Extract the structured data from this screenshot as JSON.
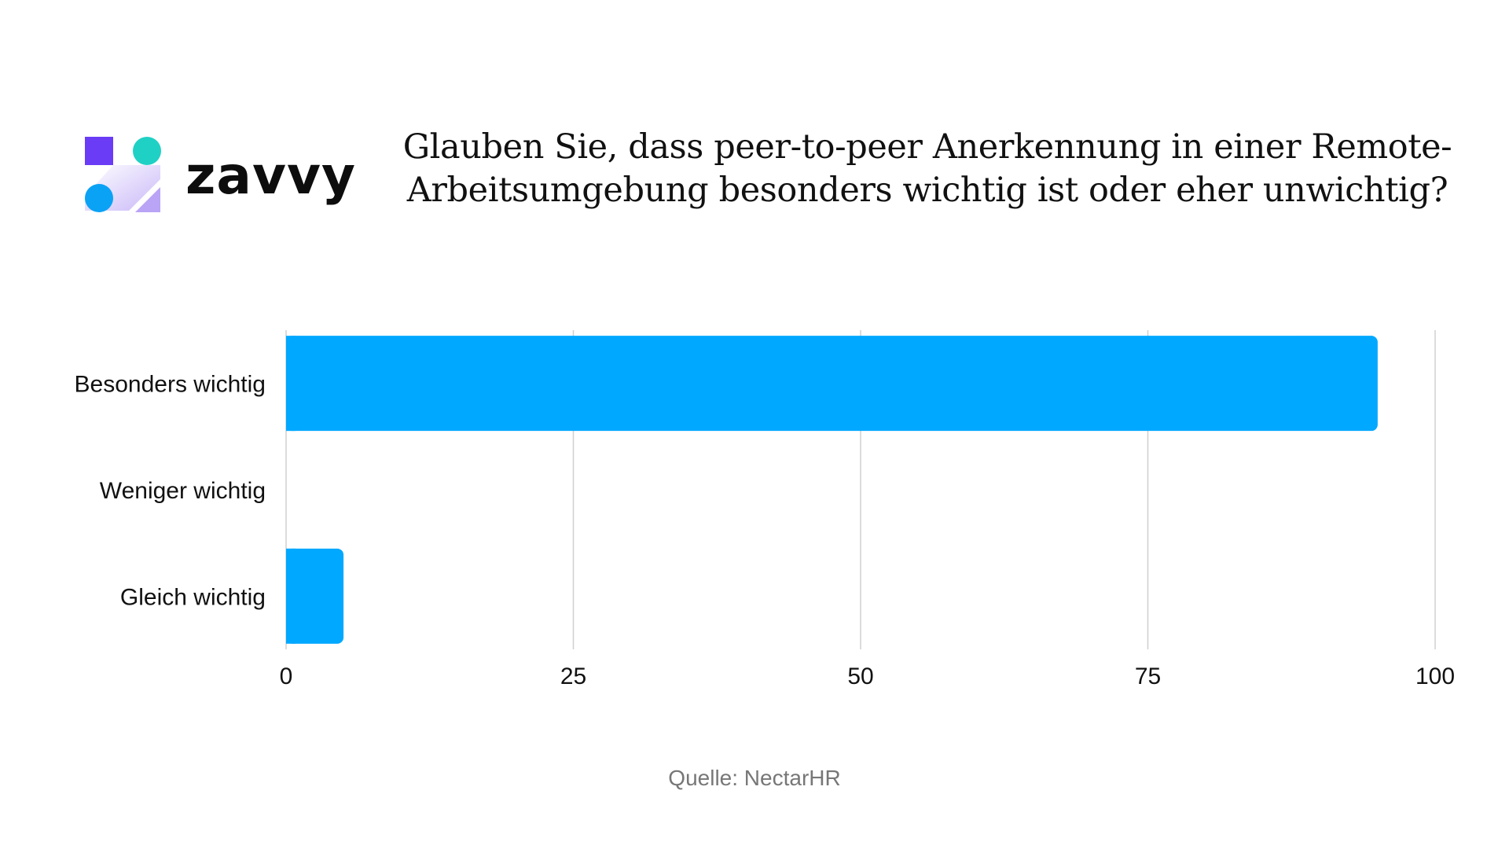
{
  "brand": {
    "name": "zavvy",
    "logo_icon": "zavvy-logo-icon",
    "colors": {
      "purple": "#6B3CF5",
      "teal": "#1FD1C4",
      "blue": "#0AA2F5",
      "lavender": "#B9A4F6"
    }
  },
  "title": {
    "line1": "Glauben Sie, dass peer-to-peer Anerkennung in einer Remote-",
    "line2": "Arbeitsumgebung besonders wichtig ist oder eher unwichtig?"
  },
  "source": "Quelle: NectarHR",
  "chart_data": {
    "type": "bar",
    "orientation": "horizontal",
    "categories": [
      "Besonders wichtig",
      "Weniger wichtig",
      "Gleich wichtig"
    ],
    "values": [
      95,
      0,
      5
    ],
    "xlim": [
      0,
      100
    ],
    "xticks": [
      "0",
      "25",
      "50",
      "75",
      "100"
    ],
    "grid": true,
    "bar_color": "#00A8FF",
    "grid_color": "#D0D0D0"
  }
}
